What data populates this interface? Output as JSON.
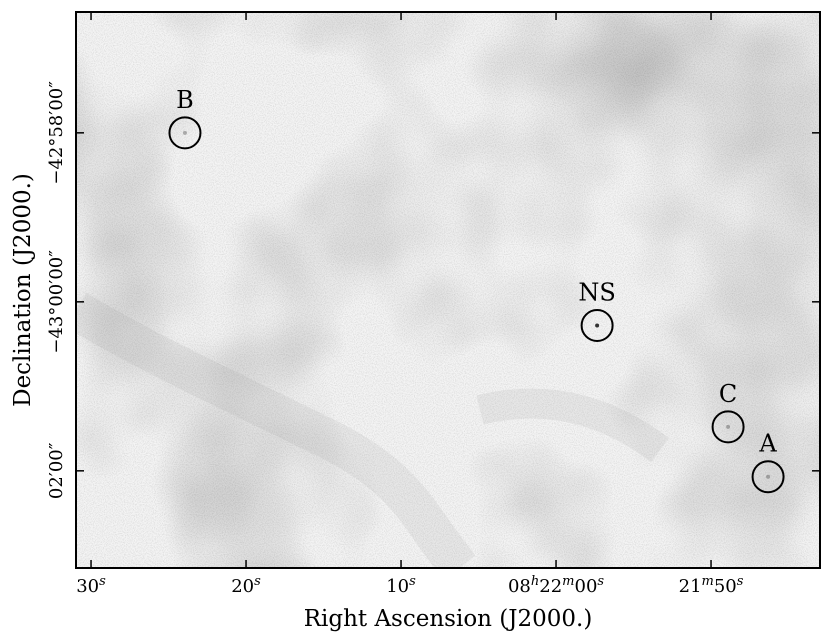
{
  "chart_data": {
    "type": "scatter",
    "xlabel": "Right Ascension (J2000.)",
    "ylabel": "Declination (J2000.)",
    "labels": [
      "B",
      "NS",
      "C",
      "A"
    ],
    "x": [
      83.94,
      57.35,
      48.9,
      46.32
    ],
    "values": [
      -2578.0,
      -2580.28,
      -2581.48,
      -2582.07
    ],
    "color": "#000000",
    "xlim": [
      90.97,
      42.97
    ],
    "ylim": [
      -2583.15,
      -2576.57
    ],
    "xticks": [
      {
        "value": 90,
        "label": "30s"
      },
      {
        "value": 80,
        "label": "20s"
      },
      {
        "value": 70,
        "label": "10s"
      },
      {
        "value": 60,
        "label": "08h22m00s"
      },
      {
        "value": 50,
        "label": "21m50s"
      }
    ],
    "yticks": [
      {
        "value": -2578,
        "label": "−42°58′00″"
      },
      {
        "value": -2580,
        "label": "−43°00′00″"
      },
      {
        "value": -2582,
        "label": "02′00″"
      }
    ]
  }
}
